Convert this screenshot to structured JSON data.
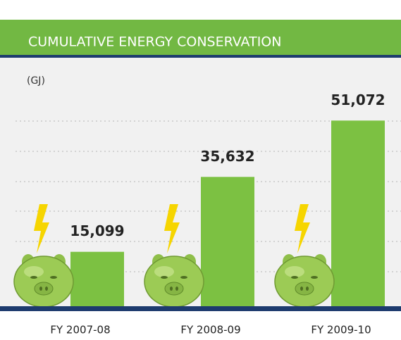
{
  "chart_data": {
    "type": "bar",
    "title": "CUMULATIVE ENERGY CONSERVATION",
    "unit_label": "(GJ)",
    "categories": [
      "FY 2007-08",
      "FY 2008-09",
      "FY 2009-10"
    ],
    "values": [
      15099,
      35632,
      51072
    ],
    "value_labels": [
      "15,099",
      "35,632",
      "51,072"
    ],
    "color": "#7cc142",
    "ylim": [
      0,
      60000
    ]
  }
}
